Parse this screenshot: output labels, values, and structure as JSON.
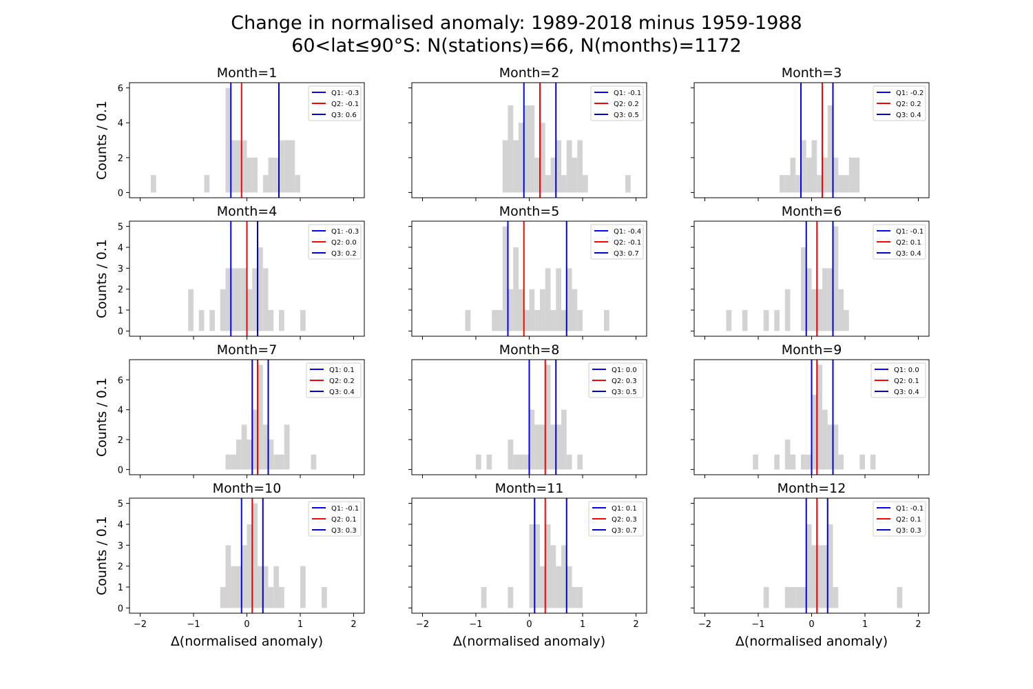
{
  "figure": {
    "title_line1": "Change in normalised anomaly: 1989-2018 minus 1959-1988",
    "title_line2": "60<lat≤90°S: N(stations)=66, N(months)=1172"
  },
  "colors": {
    "bars": "#d3d3d3",
    "q1": "#0000ff",
    "q2": "#ff0000",
    "q3": "#0000cc"
  },
  "chart_data": [
    {
      "type": "bar",
      "title": "Month=1",
      "xlabel": "",
      "ylabel": "Counts / 0.1",
      "xlim": [
        -2.2,
        2.2
      ],
      "ylim": [
        -0.3,
        6.3
      ],
      "yticks": [
        0,
        2,
        4,
        6
      ],
      "bin_width": 0.1,
      "bins": [
        [
          -1.8,
          1
        ],
        [
          -0.8,
          1
        ],
        [
          -0.4,
          6
        ],
        [
          -0.3,
          3
        ],
        [
          -0.2,
          3
        ],
        [
          -0.1,
          3
        ],
        [
          0.0,
          2
        ],
        [
          0.1,
          2
        ],
        [
          0.3,
          1
        ],
        [
          0.4,
          2
        ],
        [
          0.5,
          2
        ],
        [
          0.6,
          3
        ],
        [
          0.7,
          3
        ],
        [
          0.8,
          3
        ],
        [
          0.9,
          1
        ]
      ],
      "quartiles": {
        "Q1": -0.3,
        "Q2": -0.1,
        "Q3": 0.6
      },
      "legend": [
        "Q1: -0.3",
        "Q2: -0.1",
        "Q3: 0.6"
      ]
    },
    {
      "type": "bar",
      "title": "Month=2",
      "xlabel": "",
      "ylabel": "",
      "xlim": [
        -2.2,
        2.2
      ],
      "ylim": [
        -0.3,
        6.3
      ],
      "yticks": [
        0,
        2,
        4,
        6
      ],
      "bin_width": 0.1,
      "bins": [
        [
          -0.5,
          3
        ],
        [
          -0.4,
          5
        ],
        [
          -0.3,
          3
        ],
        [
          -0.2,
          4
        ],
        [
          -0.1,
          5
        ],
        [
          0.0,
          5
        ],
        [
          0.1,
          2
        ],
        [
          0.2,
          4
        ],
        [
          0.3,
          1
        ],
        [
          0.4,
          2
        ],
        [
          0.5,
          3
        ],
        [
          0.6,
          1
        ],
        [
          0.7,
          3
        ],
        [
          0.8,
          2
        ],
        [
          0.9,
          3
        ],
        [
          1.0,
          1
        ],
        [
          1.8,
          1
        ]
      ],
      "quartiles": {
        "Q1": -0.1,
        "Q2": 0.2,
        "Q3": 0.5
      },
      "legend": [
        "Q1: -0.1",
        "Q2: 0.2",
        "Q3: 0.5"
      ]
    },
    {
      "type": "bar",
      "title": "Month=3",
      "xlabel": "",
      "ylabel": "",
      "xlim": [
        -2.2,
        2.2
      ],
      "ylim": [
        -0.3,
        6.3
      ],
      "yticks": [
        0,
        2,
        4,
        6
      ],
      "bin_width": 0.1,
      "bins": [
        [
          -0.6,
          1
        ],
        [
          -0.5,
          1
        ],
        [
          -0.4,
          2
        ],
        [
          -0.3,
          1
        ],
        [
          -0.2,
          3
        ],
        [
          -0.1,
          2
        ],
        [
          0.0,
          3
        ],
        [
          0.1,
          1
        ],
        [
          0.2,
          2
        ],
        [
          0.3,
          5
        ],
        [
          0.4,
          2
        ],
        [
          0.5,
          1
        ],
        [
          0.6,
          1
        ],
        [
          0.7,
          2
        ],
        [
          0.8,
          2
        ]
      ],
      "quartiles": {
        "Q1": -0.2,
        "Q2": 0.2,
        "Q3": 0.4
      },
      "legend": [
        "Q1: -0.2",
        "Q2: 0.2",
        "Q3: 0.4"
      ]
    },
    {
      "type": "bar",
      "title": "Month=4",
      "xlabel": "",
      "ylabel": "Counts / 0.1",
      "xlim": [
        -2.2,
        2.2
      ],
      "ylim": [
        -0.25,
        5.25
      ],
      "yticks": [
        0,
        1,
        2,
        3,
        4,
        5
      ],
      "bin_width": 0.1,
      "bins": [
        [
          -1.1,
          2
        ],
        [
          -0.9,
          1
        ],
        [
          -0.7,
          1
        ],
        [
          -0.5,
          2
        ],
        [
          -0.4,
          3
        ],
        [
          -0.3,
          3
        ],
        [
          -0.2,
          3
        ],
        [
          -0.1,
          3
        ],
        [
          0.0,
          2
        ],
        [
          0.1,
          3
        ],
        [
          0.2,
          4
        ],
        [
          0.3,
          3
        ],
        [
          0.4,
          1
        ],
        [
          0.6,
          1
        ],
        [
          1.0,
          1
        ]
      ],
      "quartiles": {
        "Q1": -0.3,
        "Q2": 0.0,
        "Q3": 0.2
      },
      "legend": [
        "Q1: -0.3",
        "Q2: 0.0",
        "Q3: 0.2"
      ]
    },
    {
      "type": "bar",
      "title": "Month=5",
      "xlabel": "",
      "ylabel": "",
      "xlim": [
        -2.2,
        2.2
      ],
      "ylim": [
        -0.25,
        5.25
      ],
      "yticks": [
        0,
        1,
        2,
        3,
        4,
        5
      ],
      "bin_width": 0.1,
      "bins": [
        [
          -1.2,
          1
        ],
        [
          -0.7,
          1
        ],
        [
          -0.6,
          1
        ],
        [
          -0.5,
          5
        ],
        [
          -0.4,
          2
        ],
        [
          -0.3,
          4
        ],
        [
          -0.2,
          2
        ],
        [
          -0.1,
          1
        ],
        [
          0.0,
          2
        ],
        [
          0.1,
          1
        ],
        [
          0.2,
          2
        ],
        [
          0.3,
          3
        ],
        [
          0.4,
          1
        ],
        [
          0.5,
          3
        ],
        [
          0.6,
          1
        ],
        [
          0.7,
          3
        ],
        [
          0.8,
          2
        ],
        [
          0.9,
          1
        ],
        [
          1.4,
          1
        ]
      ],
      "quartiles": {
        "Q1": -0.4,
        "Q2": -0.1,
        "Q3": 0.7
      },
      "legend": [
        "Q1: -0.4",
        "Q2: -0.1",
        "Q3: 0.7"
      ]
    },
    {
      "type": "bar",
      "title": "Month=6",
      "xlabel": "",
      "ylabel": "",
      "xlim": [
        -2.2,
        2.2
      ],
      "ylim": [
        -0.25,
        5.25
      ],
      "yticks": [
        0,
        1,
        2,
        3,
        4,
        5
      ],
      "bin_width": 0.1,
      "bins": [
        [
          -1.6,
          1
        ],
        [
          -1.3,
          1
        ],
        [
          -0.9,
          1
        ],
        [
          -0.7,
          1
        ],
        [
          -0.5,
          2
        ],
        [
          -0.2,
          4
        ],
        [
          -0.1,
          3
        ],
        [
          0.0,
          2
        ],
        [
          0.1,
          2
        ],
        [
          0.2,
          3
        ],
        [
          0.3,
          3
        ],
        [
          0.4,
          5
        ],
        [
          0.5,
          2
        ],
        [
          0.6,
          1
        ]
      ],
      "quartiles": {
        "Q1": -0.1,
        "Q2": 0.1,
        "Q3": 0.4
      },
      "legend": [
        "Q1: -0.1",
        "Q2: 0.1",
        "Q3: 0.4"
      ]
    },
    {
      "type": "bar",
      "title": "Month=7",
      "xlabel": "",
      "ylabel": "Counts / 0.1",
      "xlim": [
        -2.2,
        2.2
      ],
      "ylim": [
        -0.35,
        7.35
      ],
      "yticks": [
        0,
        2,
        4,
        6
      ],
      "bin_width": 0.1,
      "bins": [
        [
          -0.4,
          1
        ],
        [
          -0.3,
          1
        ],
        [
          -0.2,
          2
        ],
        [
          -0.1,
          3
        ],
        [
          0.0,
          2
        ],
        [
          0.1,
          4
        ],
        [
          0.2,
          7
        ],
        [
          0.3,
          3
        ],
        [
          0.4,
          2
        ],
        [
          0.5,
          1
        ],
        [
          0.6,
          1
        ],
        [
          0.7,
          3
        ],
        [
          1.2,
          1
        ]
      ],
      "quartiles": {
        "Q1": 0.1,
        "Q2": 0.2,
        "Q3": 0.4
      },
      "legend": [
        "Q1: 0.1",
        "Q2: 0.2",
        "Q3: 0.4"
      ]
    },
    {
      "type": "bar",
      "title": "Month=8",
      "xlabel": "",
      "ylabel": "",
      "xlim": [
        -2.2,
        2.2
      ],
      "ylim": [
        -0.35,
        7.35
      ],
      "yticks": [
        0,
        2,
        4,
        6
      ],
      "bin_width": 0.1,
      "bins": [
        [
          -1.0,
          1
        ],
        [
          -0.8,
          1
        ],
        [
          -0.4,
          2
        ],
        [
          -0.3,
          1
        ],
        [
          -0.2,
          1
        ],
        [
          -0.1,
          1
        ],
        [
          0.0,
          4
        ],
        [
          0.1,
          3
        ],
        [
          0.2,
          3
        ],
        [
          0.3,
          7
        ],
        [
          0.4,
          3
        ],
        [
          0.5,
          3
        ],
        [
          0.6,
          4
        ],
        [
          0.7,
          1
        ],
        [
          0.9,
          1
        ]
      ],
      "quartiles": {
        "Q1": 0.0,
        "Q2": 0.3,
        "Q3": 0.5
      },
      "legend": [
        "Q1: 0.0",
        "Q2: 0.3",
        "Q3: 0.5"
      ]
    },
    {
      "type": "bar",
      "title": "Month=9",
      "xlabel": "",
      "ylabel": "",
      "xlim": [
        -2.2,
        2.2
      ],
      "ylim": [
        -0.35,
        7.35
      ],
      "yticks": [
        0,
        2,
        4,
        6
      ],
      "bin_width": 0.1,
      "bins": [
        [
          -1.1,
          1
        ],
        [
          -0.7,
          1
        ],
        [
          -0.5,
          2
        ],
        [
          -0.4,
          1
        ],
        [
          -0.2,
          1
        ],
        [
          -0.1,
          1
        ],
        [
          0.0,
          5
        ],
        [
          0.1,
          7
        ],
        [
          0.2,
          4
        ],
        [
          0.3,
          3
        ],
        [
          0.4,
          3
        ],
        [
          0.5,
          1
        ],
        [
          0.9,
          1
        ],
        [
          1.1,
          1
        ]
      ],
      "quartiles": {
        "Q1": 0.0,
        "Q2": 0.1,
        "Q3": 0.4
      },
      "legend": [
        "Q1: 0.0",
        "Q2: 0.1",
        "Q3: 0.4"
      ]
    },
    {
      "type": "bar",
      "title": "Month=10",
      "xlabel": "Δ(normalised anomaly)",
      "ylabel": "Counts / 0.1",
      "xlim": [
        -2.2,
        2.2
      ],
      "ylim": [
        -0.25,
        5.25
      ],
      "yticks": [
        0,
        1,
        2,
        3,
        4,
        5
      ],
      "bin_width": 0.1,
      "bins": [
        [
          -0.5,
          1
        ],
        [
          -0.4,
          3
        ],
        [
          -0.3,
          2
        ],
        [
          -0.2,
          2
        ],
        [
          -0.1,
          3
        ],
        [
          0.0,
          4
        ],
        [
          0.1,
          5
        ],
        [
          0.2,
          2
        ],
        [
          0.3,
          2
        ],
        [
          0.4,
          1
        ],
        [
          0.5,
          2
        ],
        [
          0.6,
          1
        ],
        [
          1.0,
          2
        ],
        [
          1.4,
          1
        ]
      ],
      "quartiles": {
        "Q1": -0.1,
        "Q2": 0.1,
        "Q3": 0.3
      },
      "legend": [
        "Q1: -0.1",
        "Q2: 0.1",
        "Q3: 0.3"
      ]
    },
    {
      "type": "bar",
      "title": "Month=11",
      "xlabel": "Δ(normalised anomaly)",
      "ylabel": "",
      "xlim": [
        -2.2,
        2.2
      ],
      "ylim": [
        -0.25,
        5.25
      ],
      "yticks": [
        0,
        1,
        2,
        3,
        4,
        5
      ],
      "bin_width": 0.1,
      "bins": [
        [
          -0.9,
          1
        ],
        [
          -0.4,
          1
        ],
        [
          0.0,
          4
        ],
        [
          0.1,
          4
        ],
        [
          0.2,
          2
        ],
        [
          0.3,
          4
        ],
        [
          0.4,
          3
        ],
        [
          0.5,
          2
        ],
        [
          0.6,
          3
        ],
        [
          0.7,
          2
        ],
        [
          0.8,
          1
        ],
        [
          0.9,
          1
        ]
      ],
      "quartiles": {
        "Q1": 0.1,
        "Q2": 0.3,
        "Q3": 0.7
      },
      "legend": [
        "Q1: 0.1",
        "Q2: 0.3",
        "Q3: 0.7"
      ]
    },
    {
      "type": "bar",
      "title": "Month=12",
      "xlabel": "Δ(normalised anomaly)",
      "ylabel": "",
      "xlim": [
        -2.2,
        2.2
      ],
      "ylim": [
        -0.25,
        5.25
      ],
      "yticks": [
        0,
        1,
        2,
        3,
        4,
        5
      ],
      "bin_width": 0.1,
      "bins": [
        [
          -0.9,
          1
        ],
        [
          -0.5,
          1
        ],
        [
          -0.4,
          1
        ],
        [
          -0.3,
          1
        ],
        [
          -0.2,
          1
        ],
        [
          -0.1,
          4
        ],
        [
          0.0,
          3
        ],
        [
          0.1,
          3
        ],
        [
          0.2,
          3
        ],
        [
          0.3,
          4
        ],
        [
          0.4,
          1
        ],
        [
          1.6,
          1
        ]
      ],
      "quartiles": {
        "Q1": -0.1,
        "Q2": 0.1,
        "Q3": 0.3
      },
      "legend": [
        "Q1: -0.1",
        "Q2: 0.1",
        "Q3: 0.3"
      ]
    }
  ]
}
